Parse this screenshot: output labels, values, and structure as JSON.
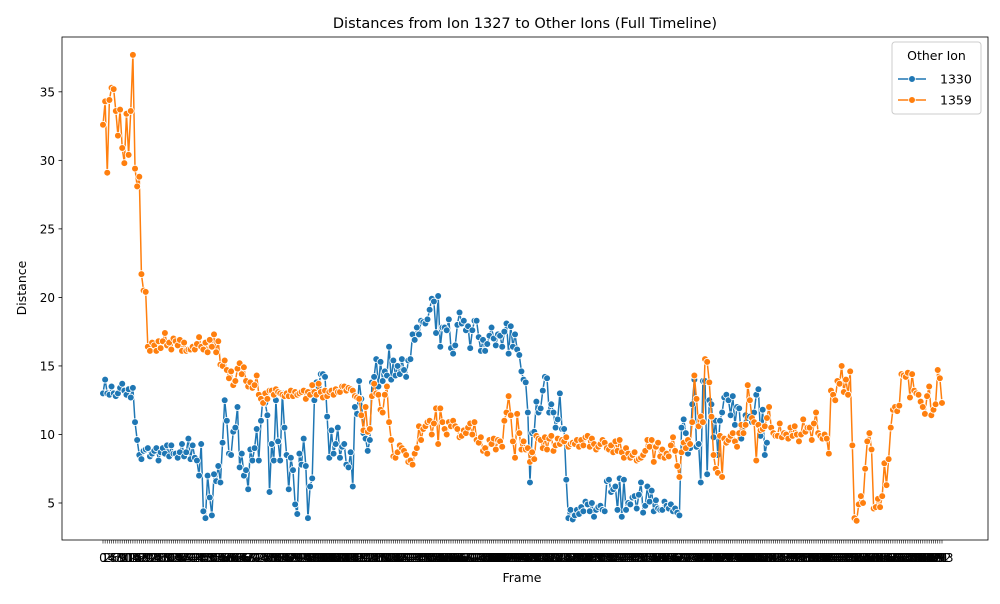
{
  "chart_data": {
    "type": "line",
    "title": "Distances from Ion 1327 to Other Ions (Full Timeline)",
    "xlabel": "Frame",
    "ylabel": "Distance",
    "ylim": [
      2.3,
      39.0
    ],
    "y_ticks": [
      5,
      10,
      15,
      20,
      25,
      30,
      35
    ],
    "x_tick_note": "frame tick labels are drawn densely and overlap into an illegible band",
    "grid": false,
    "legend": {
      "title": "Other Ion",
      "placement": "top-right"
    },
    "marker": "circle",
    "series": [
      {
        "name": "1330",
        "color": "#1f77b4",
        "values": [
          13.0,
          14.0,
          13.0,
          12.9,
          13.5,
          13.0,
          12.8,
          13.0,
          13.4,
          13.7,
          13.2,
          12.9,
          13.3,
          12.7,
          13.4,
          10.9,
          9.6,
          8.5,
          8.2,
          8.8,
          8.9,
          9.0,
          8.4,
          8.6,
          8.8,
          9.0,
          8.1,
          8.7,
          9.0,
          8.6,
          9.2,
          8.4,
          9.2,
          8.6,
          8.6,
          8.3,
          8.7,
          9.3,
          8.4,
          8.7,
          9.7,
          8.2,
          9.2,
          8.3,
          8.1,
          7.0,
          9.3,
          4.4,
          3.9,
          7.0,
          5.4,
          4.1,
          7.1,
          6.6,
          7.7,
          6.5,
          9.4,
          12.5,
          11.0,
          8.6,
          8.5,
          10.2,
          10.5,
          12.0,
          7.6,
          8.6,
          7.0,
          7.4,
          6.0,
          8.9,
          8.1,
          9.0,
          10.4,
          8.1,
          11.0,
          12.9,
          12.3,
          11.4,
          5.8,
          9.3,
          8.1,
          12.5,
          9.5,
          8.1,
          13.0,
          10.5,
          8.5,
          6.0,
          8.3,
          7.4,
          4.9,
          4.2,
          8.6,
          7.8,
          9.7,
          7.7,
          3.9,
          6.2,
          6.8,
          12.5,
          13.8,
          13.5,
          14.4,
          14.4,
          14.2,
          11.3,
          8.3,
          10.3,
          8.6,
          9.3,
          10.5,
          8.3,
          9.1,
          9.3,
          7.8,
          7.6,
          8.7,
          6.2,
          12.0,
          11.5,
          13.9,
          12.6,
          10.1,
          9.7,
          8.8,
          9.6,
          13.8,
          14.2,
          15.5,
          13.5,
          15.3,
          13.9,
          14.6,
          14.3,
          16.4,
          14.0,
          15.4,
          14.3,
          15.0,
          14.4,
          15.5,
          14.7,
          14.2,
          15.4,
          15.5,
          17.3,
          16.9,
          17.8,
          17.3,
          18.3,
          18.2,
          18.1,
          18.4,
          19.1,
          19.9,
          19.7,
          17.4,
          20.1,
          16.4,
          17.8,
          17.8,
          17.6,
          18.4,
          16.3,
          15.9,
          16.5,
          18.0,
          18.9,
          18.1,
          18.3,
          17.6,
          17.9,
          16.3,
          17.6,
          18.3,
          18.3,
          17.1,
          16.1,
          16.9,
          16.1,
          16.6,
          17.2,
          17.8,
          17.0,
          16.5,
          17.3,
          17.2,
          16.4,
          17.5,
          18.1,
          15.9,
          17.9,
          16.4,
          17.3,
          16.2,
          15.8,
          14.6,
          14.0,
          13.8,
          11.6,
          6.5,
          10.1,
          10.2,
          12.4,
          11.6,
          11.9,
          13.2,
          14.2,
          14.1,
          11.6,
          12.2,
          11.6,
          10.5,
          11.1,
          13.0,
          10.4,
          10.4,
          6.7,
          3.9,
          4.5,
          3.8,
          4.1,
          4.5,
          4.2,
          4.7,
          4.4,
          5.1,
          4.9,
          4.4,
          5.0,
          4.0,
          4.5,
          4.7,
          4.8,
          4.5,
          4.4,
          6.6,
          6.7,
          5.8,
          6.0,
          6.2,
          4.5,
          6.8,
          4.0,
          6.7,
          4.5,
          5.0,
          4.9,
          5.4,
          5.5,
          4.6,
          5.6,
          6.5,
          4.3,
          4.8,
          6.2,
          5.1,
          5.9,
          4.4,
          5.2,
          4.6,
          4.5,
          4.5,
          5.1,
          4.8,
          4.6,
          4.9,
          4.4,
          4.6,
          4.3,
          4.1,
          10.5,
          11.1,
          10.1,
          8.6,
          9.0,
          12.2,
          14.0,
          9.1,
          9.3,
          6.5,
          13.9,
          13.9,
          7.1,
          12.5,
          12.2,
          9.8,
          11.0,
          8.5,
          11.0,
          11.6,
          12.7,
          12.9,
          12.5,
          11.4,
          12.8,
          10.7,
          12.0,
          11.9,
          9.7,
          10.6,
          11.4,
          11.2,
          11.3,
          10.9,
          11.6,
          12.9,
          13.3,
          9.9,
          11.8,
          8.5,
          9.4
        ]
      },
      {
        "name": "1359",
        "color": "#ff7f0e",
        "values": [
          32.6,
          34.3,
          29.1,
          34.4,
          35.3,
          35.2,
          33.6,
          31.8,
          33.7,
          30.9,
          29.8,
          33.4,
          30.4,
          33.6,
          37.7,
          29.4,
          28.1,
          28.8,
          21.7,
          20.5,
          20.4,
          16.4,
          16.1,
          16.7,
          16.5,
          16.1,
          16.8,
          16.3,
          16.8,
          17.4,
          16.5,
          16.7,
          16.2,
          17.0,
          16.8,
          16.5,
          16.9,
          16.1,
          16.7,
          16.1,
          16.2,
          16.2,
          16.4,
          16.2,
          16.6,
          17.1,
          16.4,
          16.2,
          16.7,
          16.0,
          16.9,
          16.4,
          17.3,
          16.0,
          16.8,
          15.1,
          15.0,
          15.4,
          14.7,
          14.1,
          14.6,
          13.6,
          13.9,
          14.8,
          15.2,
          14.4,
          14.9,
          13.9,
          13.5,
          13.8,
          13.4,
          13.6,
          14.3,
          12.9,
          12.6,
          12.3,
          13.0,
          12.6,
          13.2,
          13.2,
          12.9,
          13.3,
          13.1,
          13.0,
          12.9,
          12.8,
          13.0,
          12.8,
          13.2,
          12.8,
          13.1,
          12.9,
          13.0,
          13.1,
          13.2,
          12.6,
          13.1,
          12.9,
          13.6,
          13.1,
          12.9,
          13.7,
          13.1,
          12.7,
          13.2,
          12.8,
          13.1,
          13.2,
          12.9,
          13.3,
          13.1,
          13.1,
          13.5,
          13.5,
          13.2,
          13.4,
          13.3,
          13.2,
          12.8,
          12.7,
          12.6,
          11.4,
          10.3,
          12.0,
          10.2,
          10.4,
          12.8,
          13.7,
          13.0,
          12.9,
          11.8,
          11.6,
          12.9,
          13.5,
          10.9,
          9.6,
          8.4,
          8.3,
          8.7,
          9.2,
          9.0,
          8.8,
          8.5,
          8.0,
          8.1,
          7.8,
          8.6,
          9.0,
          10.6,
          9.6,
          10.4,
          10.6,
          10.9,
          11.0,
          10.0,
          10.8,
          11.9,
          9.3,
          11.9,
          10.9,
          10.4,
          10.0,
          10.9,
          10.6,
          11.0,
          10.6,
          10.4,
          9.8,
          9.9,
          10.3,
          10.1,
          10.5,
          10.8,
          10.0,
          10.9,
          9.6,
          9.4,
          9.8,
          8.8,
          9.0,
          8.6,
          9.6,
          9.3,
          9.7,
          8.9,
          9.6,
          9.5,
          9.1,
          11.0,
          11.6,
          12.8,
          11.4,
          9.5,
          8.3,
          11.5,
          10.1,
          8.9,
          9.5,
          8.9,
          9.0,
          8.0,
          8.7,
          8.2,
          9.9,
          9.7,
          9.6,
          9.0,
          9.8,
          8.9,
          9.7,
          9.9,
          8.8,
          9.2,
          9.7,
          9.3,
          9.6,
          9.5,
          9.8,
          9.1,
          9.3,
          9.4,
          9.3,
          9.6,
          9.1,
          9.6,
          9.2,
          9.8,
          9.9,
          9.1,
          9.7,
          9.3,
          8.9,
          9.1,
          9.3,
          9.6,
          9.4,
          9.0,
          8.9,
          9.2,
          8.7,
          9.5,
          8.8,
          9.6,
          8.7,
          8.3,
          9.0,
          8.6,
          8.3,
          8.5,
          8.7,
          8.1,
          8.2,
          8.3,
          8.5,
          8.8,
          9.6,
          9.1,
          9.6,
          8.0,
          9.1,
          9.4,
          8.4,
          8.9,
          8.3,
          8.6,
          8.4,
          9.2,
          9.8,
          8.8,
          7.7,
          6.9,
          8.7,
          9.4,
          9.0,
          9.6,
          9.3,
          10.9,
          14.3,
          12.6,
          10.6,
          11.3,
          10.9,
          15.5,
          15.3,
          13.8,
          11.3,
          8.5,
          7.5,
          7.2,
          9.9,
          6.9,
          9.7,
          9.4,
          9.6,
          9.9,
          10.1,
          9.5,
          9.1,
          10.1,
          10.7,
          10.1,
          10.7,
          13.6,
          12.5,
          11.2,
          10.9,
          8.1,
          10.7,
          10.3,
          10.4,
          10.6,
          11.2,
          12.0,
          10.5,
          10.1,
          9.9,
          9.9,
          10.8,
          9.8,
          10.1,
          10.0,
          9.7,
          10.5,
          9.9,
          10.6,
          10.0,
          9.5,
          10.0,
          11.1,
          10.2,
          10.5,
          10.5,
          9.6,
          10.8,
          11.6,
          10.1,
          9.9,
          9.7,
          10.0,
          9.7,
          8.6,
          13.2,
          12.9,
          12.5,
          13.9,
          13.7,
          15.0,
          13.1,
          14.0,
          12.9,
          14.6,
          9.2,
          3.9,
          3.7,
          4.9,
          5.5,
          5.0,
          7.5,
          9.5,
          10.1,
          8.9,
          4.6,
          4.7,
          5.3,
          4.7,
          5.5,
          7.9,
          6.3,
          8.2,
          10.5,
          11.8,
          12.0,
          11.7,
          12.1,
          14.4,
          14.3,
          14.2,
          14.5,
          12.7,
          14.4,
          13.2,
          13.0,
          12.9,
          12.4,
          12.0,
          11.5,
          12.8,
          13.5,
          11.4,
          11.8,
          12.2,
          14.7,
          14.1,
          12.3
        ]
      }
    ]
  }
}
